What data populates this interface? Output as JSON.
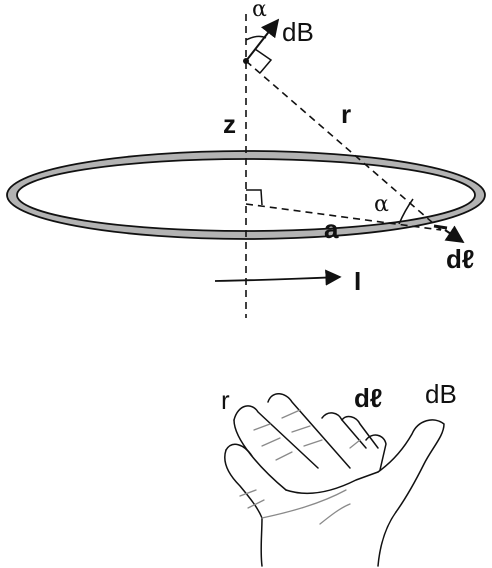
{
  "diagram": {
    "labels": {
      "alpha_top": "α",
      "dB_top": "dB",
      "z": "z",
      "r": "r",
      "alpha_mid": "α",
      "a": "a",
      "dl": "dℓ",
      "I": "I"
    },
    "hand_labels": {
      "r": "r",
      "dl": "dℓ",
      "dB": "dB"
    },
    "colors": {
      "ring_fill": "#b3b3b3",
      "line": "#111111",
      "hand_crease": "#8a8a8a"
    }
  }
}
